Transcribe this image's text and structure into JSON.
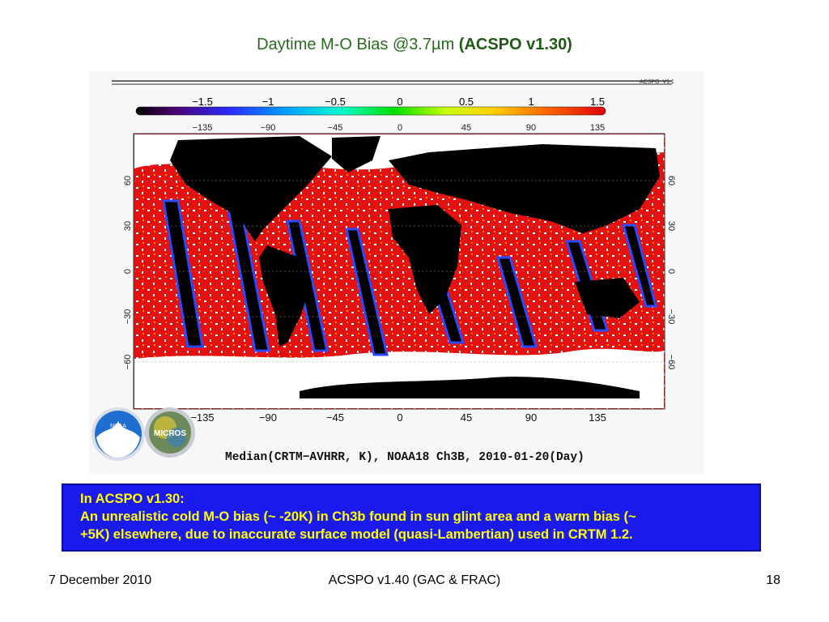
{
  "slide": {
    "title_prefix": "Daytime M-O Bias @3.7µm",
    "title_bold": "(ACSPO v1.30)",
    "figure": {
      "version_tag": "ACSPO_V1.1",
      "colorbar_ticks": [
        "−1.5",
        "−1",
        "−0.5",
        "0",
        "0.5",
        "1",
        "1.5"
      ],
      "lon_ticks": [
        "−135",
        "−90",
        "−45",
        "0",
        "45",
        "90",
        "135"
      ],
      "lat_ticks": [
        "60",
        "30",
        "0",
        "−30",
        "−60"
      ],
      "caption": "Median(CRTM−AVHRR, K), NOAA18 Ch3B, 2010-01-20(Day)",
      "logo_noaa": "NOAA",
      "logo_micros": "MICROS"
    },
    "note": {
      "line1": "In ACSPO v1.30:",
      "line2": "An unrealistic cold M-O bias (~ -20K) in Ch3b found in sun glint area and a warm bias (~",
      "line3": "+5K) elsewhere, due to inaccurate surface model (quasi-Lambertian) used in CRTM 1.2."
    },
    "footer": {
      "date": "7 December 2010",
      "center": "ACSPO v1.40 (GAC & FRAC)",
      "page": "18"
    }
  }
}
